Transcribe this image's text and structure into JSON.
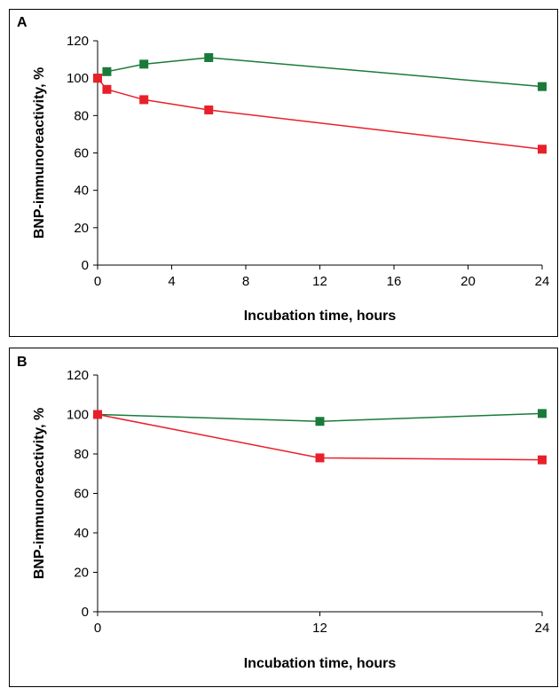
{
  "chart_data": [
    {
      "type": "line",
      "panel_label": "A",
      "xlabel": "Incubation time, hours",
      "ylabel": "BNP-immunoreactivity, %",
      "xlim": [
        0,
        24
      ],
      "ylim": [
        0,
        120
      ],
      "xticks": [
        0,
        4,
        8,
        12,
        16,
        20,
        24
      ],
      "yticks": [
        0,
        20,
        40,
        60,
        80,
        100,
        120
      ],
      "grid": false,
      "series": [
        {
          "color": "#1a7a3a",
          "marker": "square",
          "x": [
            0,
            0.5,
            2.5,
            6,
            24
          ],
          "y": [
            100,
            103.5,
            107.5,
            111,
            95.5
          ]
        },
        {
          "color": "#e8202a",
          "marker": "square",
          "x": [
            0,
            0.5,
            2.5,
            6,
            24
          ],
          "y": [
            100,
            94,
            88.5,
            83,
            62
          ]
        }
      ]
    },
    {
      "type": "line",
      "panel_label": "B",
      "xlabel": "Incubation time, hours",
      "ylabel": "BNP-immunoreactivity, %",
      "xlim": [
        0,
        24
      ],
      "ylim": [
        0,
        120
      ],
      "xticks": [
        0,
        12,
        24
      ],
      "yticks": [
        0,
        20,
        40,
        60,
        80,
        100,
        120
      ],
      "grid": false,
      "series": [
        {
          "color": "#1a7a3a",
          "marker": "square",
          "x": [
            0,
            12,
            24
          ],
          "y": [
            100,
            96.5,
            100.5
          ]
        },
        {
          "color": "#e8202a",
          "marker": "square",
          "x": [
            0,
            12,
            24
          ],
          "y": [
            100,
            78,
            77
          ]
        }
      ]
    }
  ]
}
